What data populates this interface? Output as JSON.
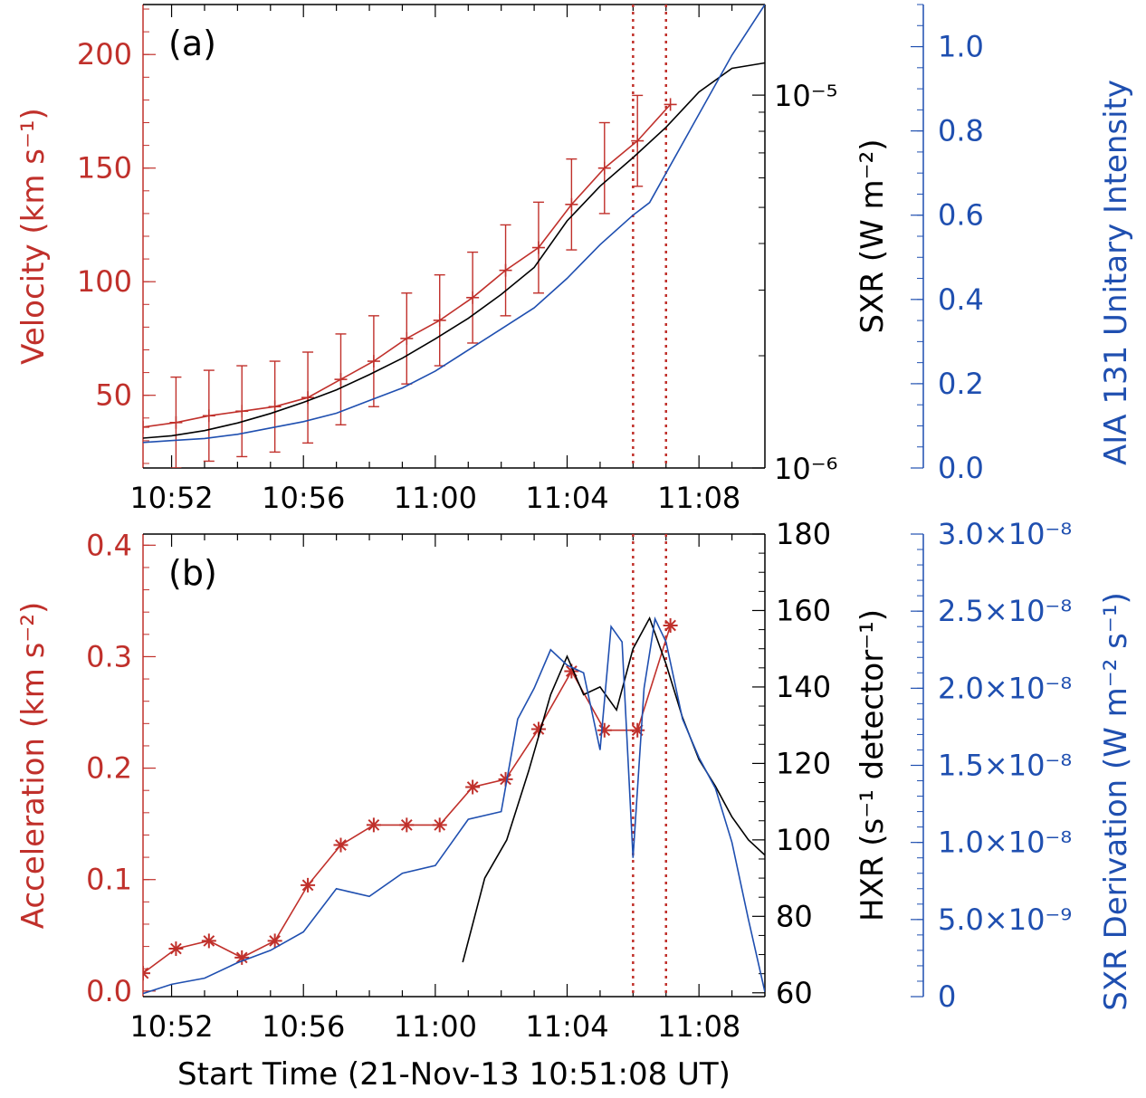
{
  "colors": {
    "red": "#c0302b",
    "black": "#000000",
    "blue": "#1f4fb0"
  },
  "chart_data": [
    {
      "type": "line",
      "panel_label": "(a)",
      "x_unit": "UT time (HH:MM)",
      "xlim": [
        "10:51:08",
        "11:10:00"
      ],
      "x_ticks": [
        "10:52",
        "10:56",
        "11:00",
        "11:04",
        "11:08"
      ],
      "ylabel_left": "Velocity (km s⁻¹)",
      "ylabel_right1": "SXR (W m⁻²)",
      "ylabel_right2": "AIA 131 Unitary Intensity",
      "ylim_left": [
        18,
        222
      ],
      "yticks_left": [
        "50",
        "100",
        "150",
        "200"
      ],
      "ylim_right1": [
        1e-06,
        1.75e-05
      ],
      "yscale_right1": "log",
      "yticks_right1": [
        "10⁻⁶",
        "10⁻⁵"
      ],
      "ylim_right2": [
        0.0,
        1.1
      ],
      "yticks_right2": [
        "0.0",
        "0.2",
        "0.4",
        "0.6",
        "0.8",
        "1.0"
      ],
      "vlines": [
        "11:06:00",
        "11:07:00"
      ],
      "series": [
        {
          "axis": "left",
          "color": "#c0302b",
          "marker": "plus",
          "error_bars": true,
          "x": [
            "10:51:08",
            "10:52:08",
            "10:53:08",
            "10:54:08",
            "10:55:08",
            "10:56:08",
            "10:57:08",
            "10:58:08",
            "10:59:08",
            "11:00:08",
            "11:01:08",
            "11:02:08",
            "11:03:08",
            "11:04:08",
            "11:05:08",
            "11:06:08",
            "11:07:08"
          ],
          "y": [
            36,
            38,
            41,
            43,
            45,
            49,
            57,
            65,
            75,
            83,
            93,
            105,
            115,
            134,
            150,
            162,
            178
          ],
          "err": [
            0,
            20,
            20,
            20,
            20,
            20,
            20,
            20,
            20,
            20,
            20,
            20,
            20,
            20,
            20,
            20,
            0
          ]
        },
        {
          "axis": "right1",
          "color": "#000000",
          "x": [
            "10:51:00",
            "10:52:00",
            "10:53:00",
            "10:54:00",
            "10:55:00",
            "10:56:00",
            "10:57:00",
            "10:58:00",
            "10:59:00",
            "11:00:00",
            "11:01:00",
            "11:02:00",
            "11:03:00",
            "11:04:00",
            "11:05:00",
            "11:06:00",
            "11:07:00",
            "11:08:00",
            "11:09:00",
            "11:10:00"
          ],
          "y": [
            1.2e-06,
            1.22e-06,
            1.26e-06,
            1.32e-06,
            1.4e-06,
            1.5e-06,
            1.62e-06,
            1.78e-06,
            1.97e-06,
            2.22e-06,
            2.52e-06,
            2.92e-06,
            3.45e-06,
            4.6e-06,
            5.7e-06,
            6.8e-06,
            8.2e-06,
            1.02e-05,
            1.18e-05,
            1.22e-05
          ]
        },
        {
          "axis": "right2",
          "color": "#1f4fb0",
          "x": [
            "10:51:00",
            "10:52:00",
            "10:53:00",
            "10:54:00",
            "10:55:00",
            "10:56:00",
            "10:57:00",
            "10:58:00",
            "10:59:00",
            "11:00:00",
            "11:01:00",
            "11:02:00",
            "11:03:00",
            "11:04:00",
            "11:05:00",
            "11:06:00",
            "11:06:30",
            "11:07:00",
            "11:08:00",
            "11:09:00",
            "11:10:00"
          ],
          "y": [
            0.06,
            0.065,
            0.07,
            0.08,
            0.095,
            0.11,
            0.13,
            0.16,
            0.19,
            0.23,
            0.28,
            0.33,
            0.38,
            0.45,
            0.53,
            0.6,
            0.63,
            0.7,
            0.84,
            0.98,
            1.1
          ]
        }
      ]
    },
    {
      "type": "line",
      "panel_label": "(b)",
      "x_unit": "UT time (HH:MM)",
      "xlim": [
        "10:51:08",
        "11:10:00"
      ],
      "x_ticks": [
        "10:52",
        "10:56",
        "11:00",
        "11:04",
        "11:08"
      ],
      "xlabel": "Start Time (21-Nov-13 10:51:08 UT)",
      "ylabel_left": "Acceleration (km s⁻²)",
      "ylabel_right1": "HXR (s⁻¹ detector⁻¹)",
      "ylabel_right2": "SXR Derivation (W m⁻² s⁻¹)",
      "ylim_left": [
        -0.005,
        0.41
      ],
      "yticks_left": [
        "0.0",
        "0.1",
        "0.2",
        "0.3",
        "0.4"
      ],
      "ylim_right1": [
        59,
        180
      ],
      "yticks_right1": [
        "60",
        "80",
        "100",
        "120",
        "140",
        "160",
        "180"
      ],
      "ylim_right2": [
        0,
        3e-08
      ],
      "yticks_right2": [
        "0",
        "5.0×10⁻⁹",
        "1.0×10⁻⁸",
        "1.5×10⁻⁸",
        "2.0×10⁻⁸",
        "2.5×10⁻⁸",
        "3.0×10⁻⁸"
      ],
      "vlines": [
        "11:06:00",
        "11:07:00"
      ],
      "series": [
        {
          "axis": "left",
          "color": "#c0302b",
          "marker": "asterisk",
          "x": [
            "10:51:08",
            "10:52:08",
            "10:53:08",
            "10:54:08",
            "10:55:08",
            "10:56:08",
            "10:57:08",
            "10:58:08",
            "10:59:08",
            "11:00:08",
            "11:01:08",
            "11:02:08",
            "11:03:08",
            "11:04:08",
            "11:05:08",
            "11:06:08",
            "11:07:08"
          ],
          "y": [
            0.016,
            0.038,
            0.045,
            0.03,
            0.045,
            0.095,
            0.131,
            0.149,
            0.149,
            0.149,
            0.183,
            0.19,
            0.235,
            0.287,
            0.234,
            0.234,
            0.328
          ]
        },
        {
          "axis": "right1",
          "color": "#000000",
          "x": [
            "11:00:50",
            "11:01:30",
            "11:02:10",
            "11:02:50",
            "11:03:30",
            "11:04:00",
            "11:04:30",
            "11:05:00",
            "11:05:30",
            "11:06:00",
            "11:06:30",
            "11:07:00",
            "11:07:30",
            "11:08:00",
            "11:08:30",
            "11:09:00",
            "11:09:30",
            "11:10:00"
          ],
          "y": [
            68,
            90,
            100,
            118,
            138,
            148,
            138,
            140,
            134,
            150,
            158,
            146,
            132,
            121,
            114,
            106,
            100,
            96
          ]
        },
        {
          "axis": "right2",
          "color": "#1f4fb0",
          "x": [
            "10:51:08",
            "10:52:00",
            "10:53:00",
            "10:54:00",
            "10:55:00",
            "10:56:00",
            "10:57:00",
            "10:58:00",
            "10:59:00",
            "11:00:00",
            "11:00:30",
            "11:01:00",
            "11:02:00",
            "11:02:30",
            "11:03:00",
            "11:03:30",
            "11:04:00",
            "11:04:30",
            "11:05:00",
            "11:05:20",
            "11:05:40",
            "11:06:00",
            "11:06:20",
            "11:06:40",
            "11:07:00",
            "11:07:30",
            "11:08:00",
            "11:08:30",
            "11:09:00",
            "11:09:30",
            "11:10:00"
          ],
          "y": [
            2e-10,
            8e-10,
            1.2e-09,
            2.2e-09,
            3e-09,
            4.2e-09,
            7e-09,
            6.5e-09,
            8e-09,
            8.5e-09,
            1e-08,
            1.15e-08,
            1.2e-08,
            1.8e-08,
            2e-08,
            2.25e-08,
            2.15e-08,
            2.1e-08,
            1.6e-08,
            2.4e-08,
            2.3e-08,
            9e-09,
            2e-08,
            2.45e-08,
            2.3e-08,
            1.8e-08,
            1.55e-08,
            1.35e-08,
            1e-08,
            5e-09,
            3e-10
          ]
        }
      ]
    }
  ]
}
